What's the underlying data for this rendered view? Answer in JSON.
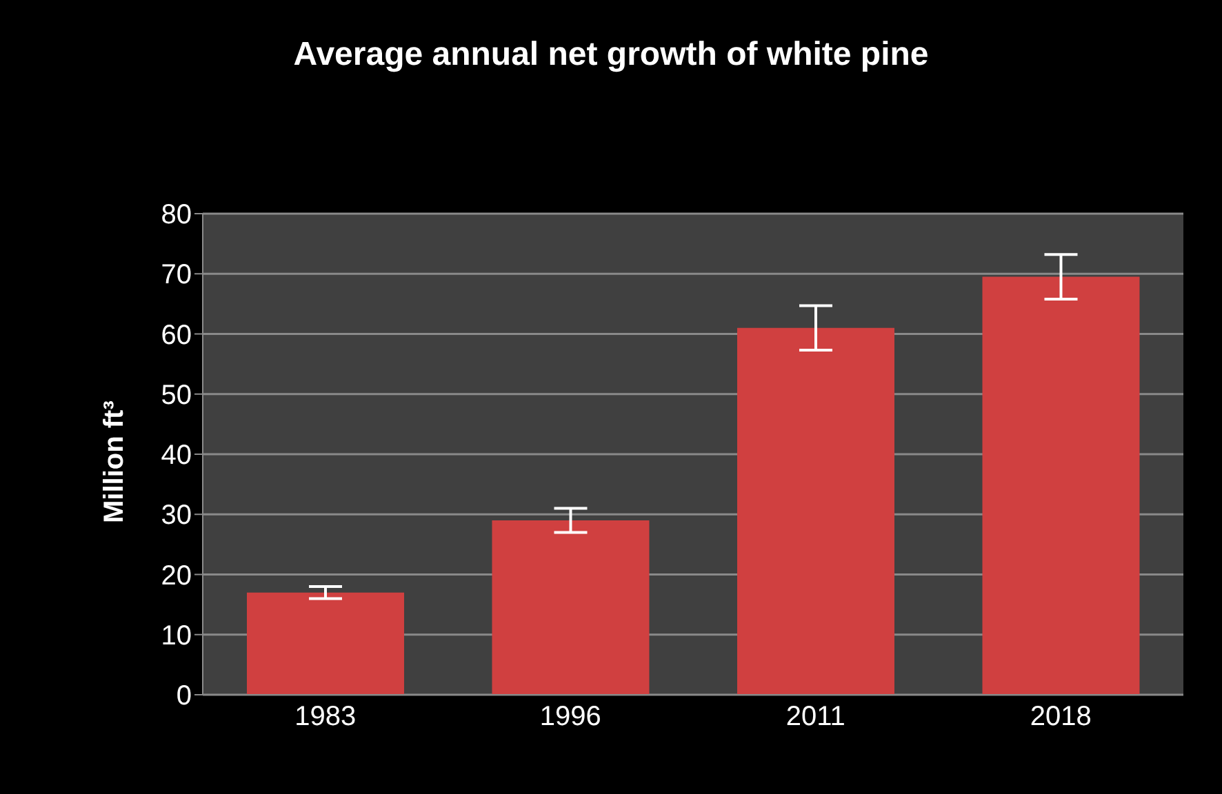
{
  "chart_data": {
    "type": "bar",
    "title": "Average annual net growth of white pine",
    "ylabel": "Million ft³",
    "categories": [
      "1983",
      "1996",
      "2011",
      "2018"
    ],
    "values": [
      17,
      29,
      61,
      69.5
    ],
    "errors": [
      1,
      2,
      3.7,
      3.7
    ],
    "color": "#d04040",
    "ylim": [
      0,
      80
    ],
    "yticks": [
      0,
      10,
      20,
      30,
      40,
      50,
      60,
      70,
      80
    ],
    "grid": "y"
  }
}
